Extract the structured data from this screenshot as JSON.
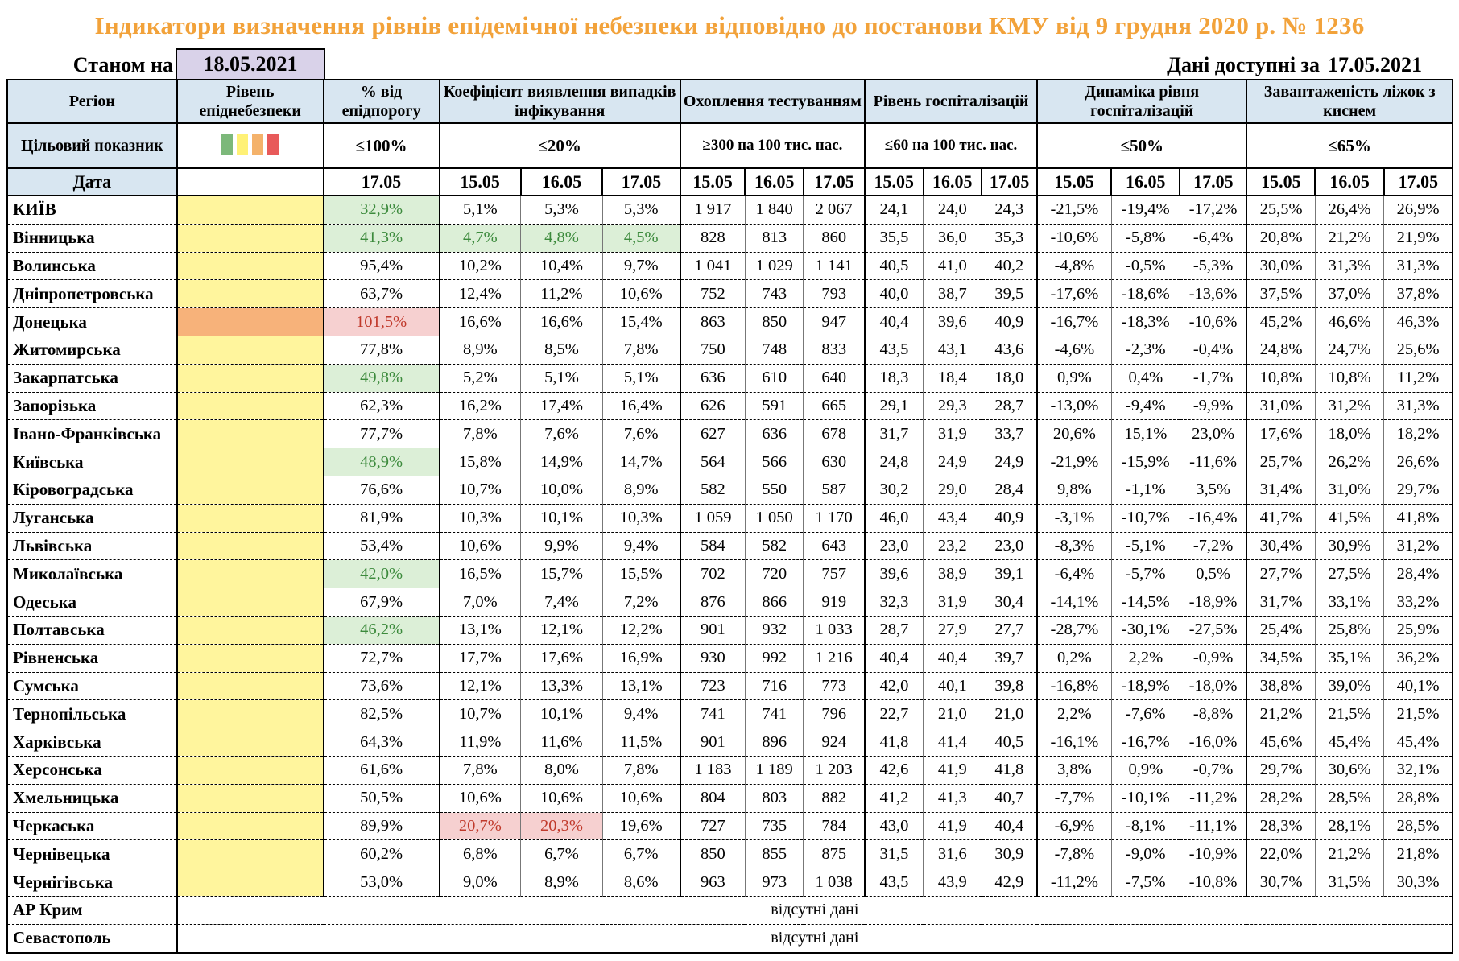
{
  "title": "Індикатори визначення рівнів епідемічної небезпеки відповідно до постанови КМУ від 9 грудня 2020 р. № 1236",
  "as_of": {
    "label": "Станом на",
    "date": "18.05.2021"
  },
  "available": {
    "label": "Дані доступні за",
    "date": "17.05.2021"
  },
  "headers": {
    "region": "Регіон",
    "level": "Рівень епіднебезпеки",
    "pct": "% від епідпорогу",
    "detect": "Коефіцієнт виявлення випадків інфікування",
    "testing": "Охоплення тестуванням",
    "hosp": "Рівень госпіталізацій",
    "dyn": "Динаміка рівня госпіталізацій",
    "beds": "Завантаженість ліжок з киснем"
  },
  "targets": {
    "label": "Цільовий показник",
    "pct": "≤100%",
    "detect": "≤20%",
    "testing": "≥300 на 100 тис. нас.",
    "hosp": "≤60 на 100 тис. нас.",
    "dyn": "≤50%",
    "beds": "≤65%"
  },
  "swatch_colors": [
    "#7CB87A",
    "#FFF176",
    "#F4B26B",
    "#E85A5A"
  ],
  "date_label": "Дата",
  "dates": {
    "pct": "17.05",
    "d1": "15.05",
    "d2": "16.05",
    "d3": "17.05"
  },
  "rows": [
    {
      "region": "КИЇВ",
      "level": "yellow",
      "pct": "32,9%",
      "pct_hl": "g",
      "det": [
        "5,1%",
        "5,3%",
        "5,3%"
      ],
      "det_hl": [
        "",
        "",
        ""
      ],
      "test": [
        "1 917",
        "1 840",
        "2 067"
      ],
      "hosp": [
        "24,1",
        "24,0",
        "24,3"
      ],
      "dyn": [
        "-21,5%",
        "-19,4%",
        "-17,2%"
      ],
      "beds": [
        "25,5%",
        "26,4%",
        "26,9%"
      ]
    },
    {
      "region": "Вінницька",
      "level": "yellow",
      "pct": "41,3%",
      "pct_hl": "g",
      "det": [
        "4,7%",
        "4,8%",
        "4,5%"
      ],
      "det_hl": [
        "g",
        "g",
        "g"
      ],
      "test": [
        "828",
        "813",
        "860"
      ],
      "hosp": [
        "35,5",
        "36,0",
        "35,3"
      ],
      "dyn": [
        "-10,6%",
        "-5,8%",
        "-6,4%"
      ],
      "beds": [
        "20,8%",
        "21,2%",
        "21,9%"
      ]
    },
    {
      "region": "Волинська",
      "level": "yellow",
      "pct": "95,4%",
      "pct_hl": "",
      "det": [
        "10,2%",
        "10,4%",
        "9,7%"
      ],
      "det_hl": [
        "",
        "",
        ""
      ],
      "test": [
        "1 041",
        "1 029",
        "1 141"
      ],
      "hosp": [
        "40,5",
        "41,0",
        "40,2"
      ],
      "dyn": [
        "-4,8%",
        "-0,5%",
        "-5,3%"
      ],
      "beds": [
        "30,0%",
        "31,3%",
        "31,3%"
      ]
    },
    {
      "region": "Дніпропетровська",
      "level": "yellow",
      "pct": "63,7%",
      "pct_hl": "",
      "det": [
        "12,4%",
        "11,2%",
        "10,6%"
      ],
      "det_hl": [
        "",
        "",
        ""
      ],
      "test": [
        "752",
        "743",
        "793"
      ],
      "hosp": [
        "40,0",
        "38,7",
        "39,5"
      ],
      "dyn": [
        "-17,6%",
        "-18,6%",
        "-13,6%"
      ],
      "beds": [
        "37,5%",
        "37,0%",
        "37,8%"
      ]
    },
    {
      "region": "Донецька",
      "level": "orange",
      "pct": "101,5%",
      "pct_hl": "r",
      "det": [
        "16,6%",
        "16,6%",
        "15,4%"
      ],
      "det_hl": [
        "",
        "",
        ""
      ],
      "test": [
        "863",
        "850",
        "947"
      ],
      "hosp": [
        "40,4",
        "39,6",
        "40,9"
      ],
      "dyn": [
        "-16,7%",
        "-18,3%",
        "-10,6%"
      ],
      "beds": [
        "45,2%",
        "46,6%",
        "46,3%"
      ]
    },
    {
      "region": "Житомирська",
      "level": "yellow",
      "pct": "77,8%",
      "pct_hl": "",
      "det": [
        "8,9%",
        "8,5%",
        "7,8%"
      ],
      "det_hl": [
        "",
        "",
        ""
      ],
      "test": [
        "750",
        "748",
        "833"
      ],
      "hosp": [
        "43,5",
        "43,1",
        "43,6"
      ],
      "dyn": [
        "-4,6%",
        "-2,3%",
        "-0,4%"
      ],
      "beds": [
        "24,8%",
        "24,7%",
        "25,6%"
      ]
    },
    {
      "region": "Закарпатська",
      "level": "yellow",
      "pct": "49,8%",
      "pct_hl": "g",
      "det": [
        "5,2%",
        "5,1%",
        "5,1%"
      ],
      "det_hl": [
        "",
        "",
        ""
      ],
      "test": [
        "636",
        "610",
        "640"
      ],
      "hosp": [
        "18,3",
        "18,4",
        "18,0"
      ],
      "dyn": [
        "0,9%",
        "0,4%",
        "-1,7%"
      ],
      "beds": [
        "10,8%",
        "10,8%",
        "11,2%"
      ]
    },
    {
      "region": "Запорізька",
      "level": "yellow",
      "pct": "62,3%",
      "pct_hl": "",
      "det": [
        "16,2%",
        "17,4%",
        "16,4%"
      ],
      "det_hl": [
        "",
        "",
        ""
      ],
      "test": [
        "626",
        "591",
        "665"
      ],
      "hosp": [
        "29,1",
        "29,3",
        "28,7"
      ],
      "dyn": [
        "-13,0%",
        "-9,4%",
        "-9,9%"
      ],
      "beds": [
        "31,0%",
        "31,2%",
        "31,3%"
      ]
    },
    {
      "region": "Івано-Франківська",
      "level": "yellow",
      "pct": "77,7%",
      "pct_hl": "",
      "det": [
        "7,8%",
        "7,6%",
        "7,6%"
      ],
      "det_hl": [
        "",
        "",
        ""
      ],
      "test": [
        "627",
        "636",
        "678"
      ],
      "hosp": [
        "31,7",
        "31,9",
        "33,7"
      ],
      "dyn": [
        "20,6%",
        "15,1%",
        "23,0%"
      ],
      "beds": [
        "17,6%",
        "18,0%",
        "18,2%"
      ]
    },
    {
      "region": "Київська",
      "level": "yellow",
      "pct": "48,9%",
      "pct_hl": "g",
      "det": [
        "15,8%",
        "14,9%",
        "14,7%"
      ],
      "det_hl": [
        "",
        "",
        ""
      ],
      "test": [
        "564",
        "566",
        "630"
      ],
      "hosp": [
        "24,8",
        "24,9",
        "24,9"
      ],
      "dyn": [
        "-21,9%",
        "-15,9%",
        "-11,6%"
      ],
      "beds": [
        "25,7%",
        "26,2%",
        "26,6%"
      ]
    },
    {
      "region": "Кіровоградська",
      "level": "yellow",
      "pct": "76,6%",
      "pct_hl": "",
      "det": [
        "10,7%",
        "10,0%",
        "8,9%"
      ],
      "det_hl": [
        "",
        "",
        ""
      ],
      "test": [
        "582",
        "550",
        "587"
      ],
      "hosp": [
        "30,2",
        "29,0",
        "28,4"
      ],
      "dyn": [
        "9,8%",
        "-1,1%",
        "3,5%"
      ],
      "beds": [
        "31,4%",
        "31,0%",
        "29,7%"
      ]
    },
    {
      "region": "Луганська",
      "level": "yellow",
      "pct": "81,9%",
      "pct_hl": "",
      "det": [
        "10,3%",
        "10,1%",
        "10,3%"
      ],
      "det_hl": [
        "",
        "",
        ""
      ],
      "test": [
        "1 059",
        "1 050",
        "1 170"
      ],
      "hosp": [
        "46,0",
        "43,4",
        "40,9"
      ],
      "dyn": [
        "-3,1%",
        "-10,7%",
        "-16,4%"
      ],
      "beds": [
        "41,7%",
        "41,5%",
        "41,8%"
      ]
    },
    {
      "region": "Львівська",
      "level": "yellow",
      "pct": "53,4%",
      "pct_hl": "",
      "det": [
        "10,6%",
        "9,9%",
        "9,4%"
      ],
      "det_hl": [
        "",
        "",
        ""
      ],
      "test": [
        "584",
        "582",
        "643"
      ],
      "hosp": [
        "23,0",
        "23,2",
        "23,0"
      ],
      "dyn": [
        "-8,3%",
        "-5,1%",
        "-7,2%"
      ],
      "beds": [
        "30,4%",
        "30,9%",
        "31,2%"
      ]
    },
    {
      "region": "Миколаївська",
      "level": "yellow",
      "pct": "42,0%",
      "pct_hl": "g",
      "det": [
        "16,5%",
        "15,7%",
        "15,5%"
      ],
      "det_hl": [
        "",
        "",
        ""
      ],
      "test": [
        "702",
        "720",
        "757"
      ],
      "hosp": [
        "39,6",
        "38,9",
        "39,1"
      ],
      "dyn": [
        "-6,4%",
        "-5,7%",
        "0,5%"
      ],
      "beds": [
        "27,7%",
        "27,5%",
        "28,4%"
      ]
    },
    {
      "region": "Одеська",
      "level": "yellow",
      "pct": "67,9%",
      "pct_hl": "",
      "det": [
        "7,0%",
        "7,4%",
        "7,2%"
      ],
      "det_hl": [
        "",
        "",
        ""
      ],
      "test": [
        "876",
        "866",
        "919"
      ],
      "hosp": [
        "32,3",
        "31,9",
        "30,4"
      ],
      "dyn": [
        "-14,1%",
        "-14,5%",
        "-18,9%"
      ],
      "beds": [
        "31,7%",
        "33,1%",
        "33,2%"
      ]
    },
    {
      "region": "Полтавська",
      "level": "yellow",
      "pct": "46,2%",
      "pct_hl": "g",
      "det": [
        "13,1%",
        "12,1%",
        "12,2%"
      ],
      "det_hl": [
        "",
        "",
        ""
      ],
      "test": [
        "901",
        "932",
        "1 033"
      ],
      "hosp": [
        "28,7",
        "27,9",
        "27,7"
      ],
      "dyn": [
        "-28,7%",
        "-30,1%",
        "-27,5%"
      ],
      "beds": [
        "25,4%",
        "25,8%",
        "25,9%"
      ]
    },
    {
      "region": "Рівненська",
      "level": "yellow",
      "pct": "72,7%",
      "pct_hl": "",
      "det": [
        "17,7%",
        "17,6%",
        "16,9%"
      ],
      "det_hl": [
        "",
        "",
        ""
      ],
      "test": [
        "930",
        "992",
        "1 216"
      ],
      "hosp": [
        "40,4",
        "40,4",
        "39,7"
      ],
      "dyn": [
        "0,2%",
        "2,2%",
        "-0,9%"
      ],
      "beds": [
        "34,5%",
        "35,1%",
        "36,2%"
      ]
    },
    {
      "region": "Сумська",
      "level": "yellow",
      "pct": "73,6%",
      "pct_hl": "",
      "det": [
        "12,1%",
        "13,3%",
        "13,1%"
      ],
      "det_hl": [
        "",
        "",
        ""
      ],
      "test": [
        "723",
        "716",
        "773"
      ],
      "hosp": [
        "42,0",
        "40,1",
        "39,8"
      ],
      "dyn": [
        "-16,8%",
        "-18,9%",
        "-18,0%"
      ],
      "beds": [
        "38,8%",
        "39,0%",
        "40,1%"
      ]
    },
    {
      "region": "Тернопільська",
      "level": "yellow",
      "pct": "82,5%",
      "pct_hl": "",
      "det": [
        "10,7%",
        "10,1%",
        "9,4%"
      ],
      "det_hl": [
        "",
        "",
        ""
      ],
      "test": [
        "741",
        "741",
        "796"
      ],
      "hosp": [
        "22,7",
        "21,0",
        "21,0"
      ],
      "dyn": [
        "2,2%",
        "-7,6%",
        "-8,8%"
      ],
      "beds": [
        "21,2%",
        "21,5%",
        "21,5%"
      ]
    },
    {
      "region": "Харківська",
      "level": "yellow",
      "pct": "64,3%",
      "pct_hl": "",
      "det": [
        "11,9%",
        "11,6%",
        "11,5%"
      ],
      "det_hl": [
        "",
        "",
        ""
      ],
      "test": [
        "901",
        "896",
        "924"
      ],
      "hosp": [
        "41,8",
        "41,4",
        "40,5"
      ],
      "dyn": [
        "-16,1%",
        "-16,7%",
        "-16,0%"
      ],
      "beds": [
        "45,6%",
        "45,4%",
        "45,4%"
      ]
    },
    {
      "region": "Херсонська",
      "level": "yellow",
      "pct": "61,6%",
      "pct_hl": "",
      "det": [
        "7,8%",
        "8,0%",
        "7,8%"
      ],
      "det_hl": [
        "",
        "",
        ""
      ],
      "test": [
        "1 183",
        "1 189",
        "1 203"
      ],
      "hosp": [
        "42,6",
        "41,9",
        "41,8"
      ],
      "dyn": [
        "3,8%",
        "0,9%",
        "-0,7%"
      ],
      "beds": [
        "29,7%",
        "30,6%",
        "32,1%"
      ]
    },
    {
      "region": "Хмельницька",
      "level": "yellow",
      "pct": "50,5%",
      "pct_hl": "",
      "det": [
        "10,6%",
        "10,6%",
        "10,6%"
      ],
      "det_hl": [
        "",
        "",
        ""
      ],
      "test": [
        "804",
        "803",
        "882"
      ],
      "hosp": [
        "41,2",
        "41,3",
        "40,7"
      ],
      "dyn": [
        "-7,7%",
        "-10,1%",
        "-11,2%"
      ],
      "beds": [
        "28,2%",
        "28,5%",
        "28,8%"
      ]
    },
    {
      "region": "Черкаська",
      "level": "yellow",
      "pct": "89,9%",
      "pct_hl": "",
      "det": [
        "20,7%",
        "20,3%",
        "19,6%"
      ],
      "det_hl": [
        "r",
        "r",
        ""
      ],
      "test": [
        "727",
        "735",
        "784"
      ],
      "hosp": [
        "43,0",
        "41,9",
        "40,4"
      ],
      "dyn": [
        "-6,9%",
        "-8,1%",
        "-11,1%"
      ],
      "beds": [
        "28,3%",
        "28,1%",
        "28,5%"
      ]
    },
    {
      "region": "Чернівецька",
      "level": "yellow",
      "pct": "60,2%",
      "pct_hl": "",
      "det": [
        "6,8%",
        "6,7%",
        "6,7%"
      ],
      "det_hl": [
        "",
        "",
        ""
      ],
      "test": [
        "850",
        "855",
        "875"
      ],
      "hosp": [
        "31,5",
        "31,6",
        "30,9"
      ],
      "dyn": [
        "-7,8%",
        "-9,0%",
        "-10,9%"
      ],
      "beds": [
        "22,0%",
        "21,2%",
        "21,8%"
      ]
    },
    {
      "region": "Чернігівська",
      "level": "yellow",
      "pct": "53,0%",
      "pct_hl": "",
      "det": [
        "9,0%",
        "8,9%",
        "8,6%"
      ],
      "det_hl": [
        "",
        "",
        ""
      ],
      "test": [
        "963",
        "973",
        "1 038"
      ],
      "hosp": [
        "43,5",
        "43,9",
        "42,9"
      ],
      "dyn": [
        "-11,2%",
        "-7,5%",
        "-10,8%"
      ],
      "beds": [
        "30,7%",
        "31,5%",
        "30,3%"
      ]
    }
  ],
  "no_data_rows": [
    {
      "region": "АР Крим",
      "text": "відсутні дані"
    },
    {
      "region": "Севастополь",
      "text": "відсутні дані"
    }
  ]
}
